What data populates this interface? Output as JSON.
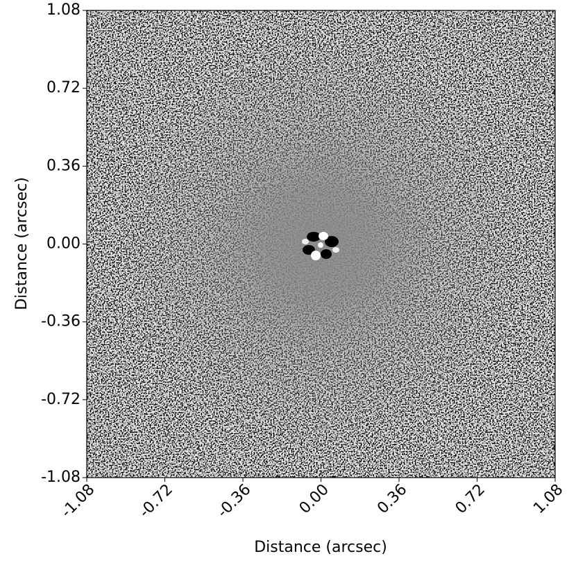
{
  "chart_data": {
    "type": "image",
    "xlabel": "Distance (arcsec)",
    "ylabel": "Distance (arcsec)",
    "xlim": [
      -1.08,
      1.08
    ],
    "ylim": [
      -1.08,
      1.08
    ],
    "xticks": [
      -1.08,
      -0.72,
      -0.36,
      {
        "value": 0,
        "label": "0.00"
      },
      0.36,
      0.72,
      1.08
    ],
    "yticks": [
      -1.08,
      -0.72,
      -0.36,
      {
        "value": 0,
        "label": "0.00"
      },
      0.36,
      0.72,
      1.08
    ],
    "colormap": "gray"
  }
}
